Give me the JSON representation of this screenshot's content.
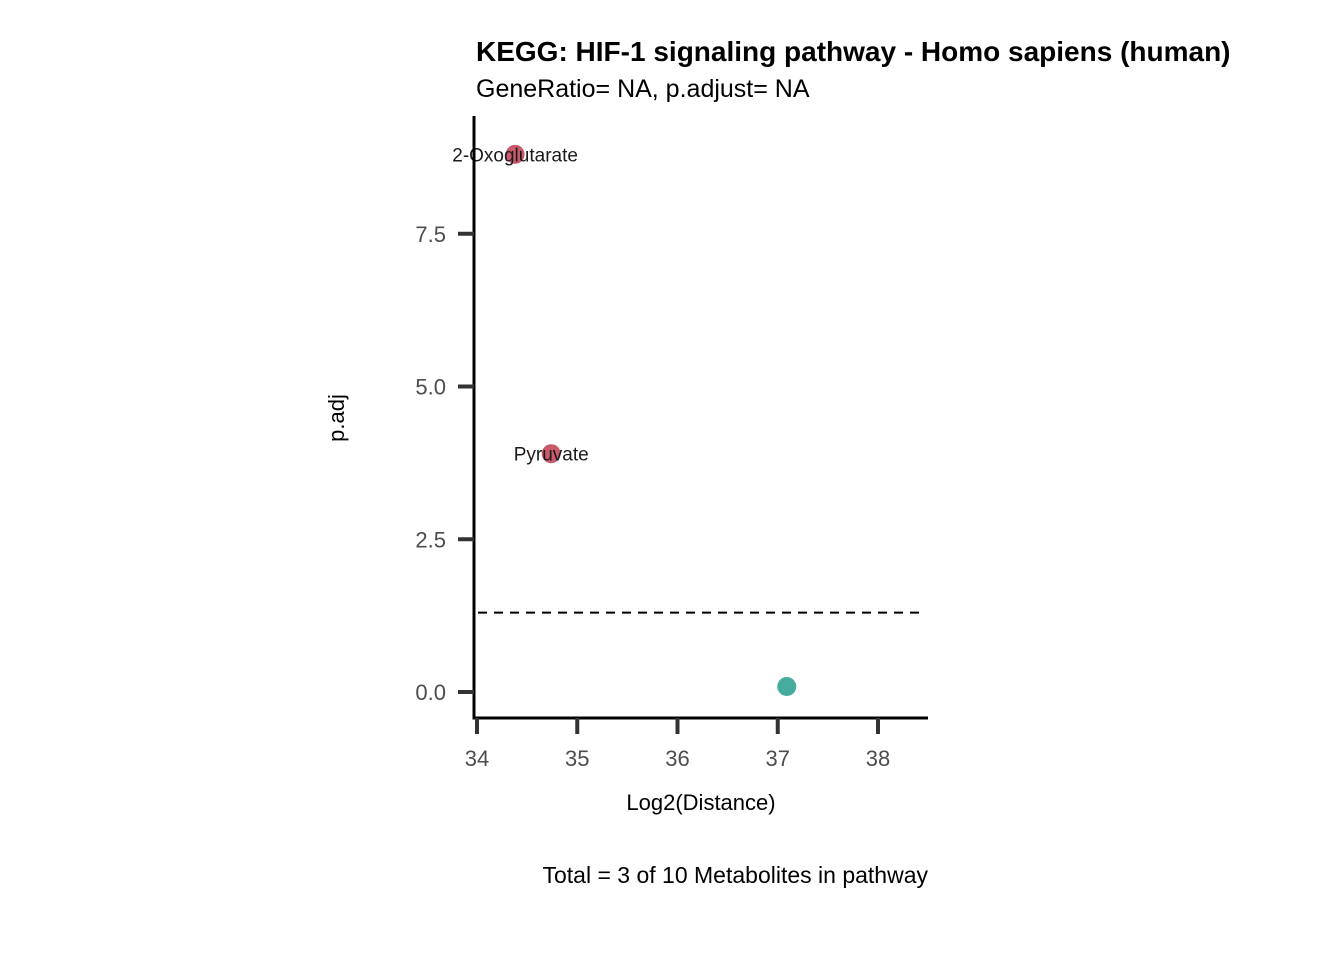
{
  "chart_data": {
    "type": "scatter",
    "title": "KEGG: HIF-1 signaling pathway - Homo sapiens (human)",
    "subtitle": "GeneRatio= NA, p.adjust= NA",
    "xlabel": "Log2(Distance)",
    "ylabel": "p.adj",
    "caption": "Total = 3 of 10 Metabolites in pathway",
    "xlim": [
      34,
      38.5
    ],
    "ylim": [
      -0.4,
      9.2
    ],
    "x_ticks": [
      34,
      35,
      36,
      37,
      38
    ],
    "y_ticks": [
      0.0,
      2.5,
      5.0,
      7.5
    ],
    "x_tick_labels": [
      "34",
      "35",
      "36",
      "37",
      "38"
    ],
    "y_tick_labels": [
      "0.0",
      "2.5",
      "5.0",
      "7.5"
    ],
    "threshold_line": {
      "y": 1.3,
      "style": "dashed"
    },
    "grid": false,
    "legend": "none",
    "points": [
      {
        "label": "2-Oxoglutarate",
        "x": 34.38,
        "y": 8.8,
        "color": "#c95a6c"
      },
      {
        "label": "Pyruvate",
        "x": 34.74,
        "y": 3.9,
        "color": "#c95a6c"
      },
      {
        "label": "",
        "x": 37.09,
        "y": 0.09,
        "color": "#46ad9e"
      }
    ]
  }
}
